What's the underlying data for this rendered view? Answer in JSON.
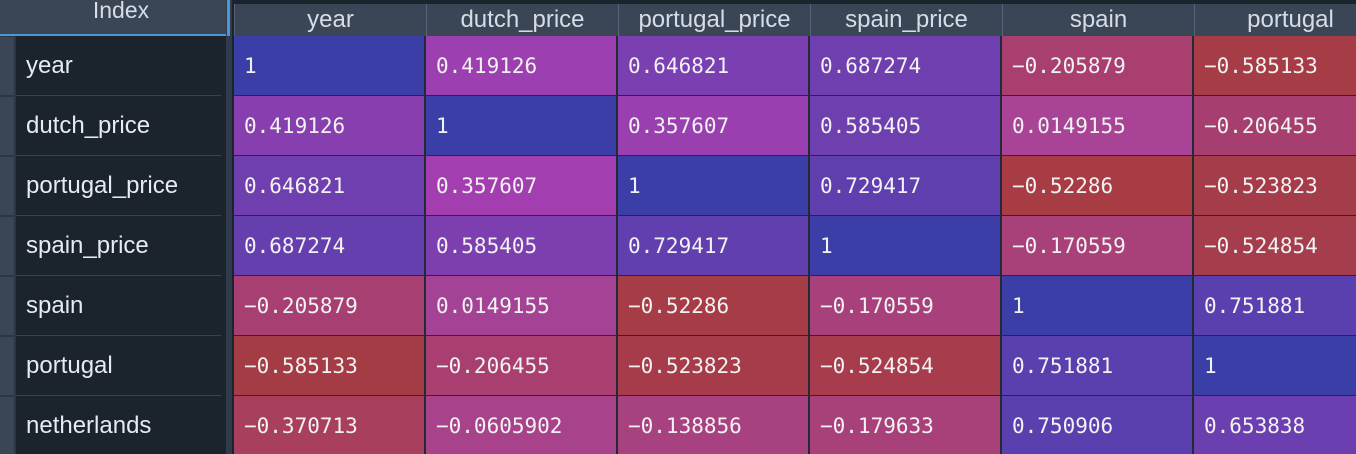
{
  "index_header": "Index",
  "columns": [
    "year",
    "dutch_price",
    "portugal_price",
    "spain_price",
    "spain",
    "portugal"
  ],
  "rows": [
    {
      "label": "year",
      "values": [
        "1",
        "0.419126",
        "0.646821",
        "0.687274",
        "−0.205879",
        "−0.585133"
      ],
      "colors": [
        "#3a3ea6",
        "#9c3fb0",
        "#7a3fb0",
        "#6f3faf",
        "#a83f6f",
        "#a63c45"
      ]
    },
    {
      "label": "dutch_price",
      "values": [
        "0.419126",
        "1",
        "0.357607",
        "0.585405",
        "0.0149155",
        "−0.206455"
      ],
      "colors": [
        "#873faf",
        "#3a3ea6",
        "#9a3fb0",
        "#6e3faf",
        "#a84395",
        "#a63f6f"
      ]
    },
    {
      "label": "portugal_price",
      "values": [
        "0.646821",
        "0.357607",
        "1",
        "0.729417",
        "−0.52286",
        "−0.523823"
      ],
      "colors": [
        "#6f3faf",
        "#a33eb0",
        "#3a3ea6",
        "#5f3fae",
        "#a73c45",
        "#a53c4a"
      ]
    },
    {
      "label": "spain_price",
      "values": [
        "0.687274",
        "0.585405",
        "0.729417",
        "1",
        "−0.170559",
        "−0.524854"
      ],
      "colors": [
        "#663fae",
        "#7d3faf",
        "#613fae",
        "#3a3ea6",
        "#a8417a",
        "#a53d4d"
      ]
    },
    {
      "label": "spain",
      "values": [
        "−0.205879",
        "0.0149155",
        "−0.52286",
        "−0.170559",
        "1",
        "0.751881"
      ],
      "colors": [
        "#a83f72",
        "#a44295",
        "#a63c45",
        "#a8407c",
        "#3a3ea6",
        "#5a3fae"
      ]
    },
    {
      "label": "portugal",
      "values": [
        "−0.585133",
        "−0.206455",
        "−0.523823",
        "−0.524854",
        "0.751881",
        "1"
      ],
      "colors": [
        "#a43c45",
        "#a83f70",
        "#a63c4a",
        "#a63c4c",
        "#5a3fae",
        "#3a3ea6"
      ]
    },
    {
      "label": "netherlands",
      "values": [
        "−0.370713",
        "−0.0605902",
        "−0.138856",
        "−0.179633",
        "0.750906",
        "0.653838"
      ],
      "colors": [
        "#a83f5d",
        "#a8428b",
        "#a84180",
        "#a8407a",
        "#5a3fae",
        "#6b3faf"
      ]
    }
  ]
}
